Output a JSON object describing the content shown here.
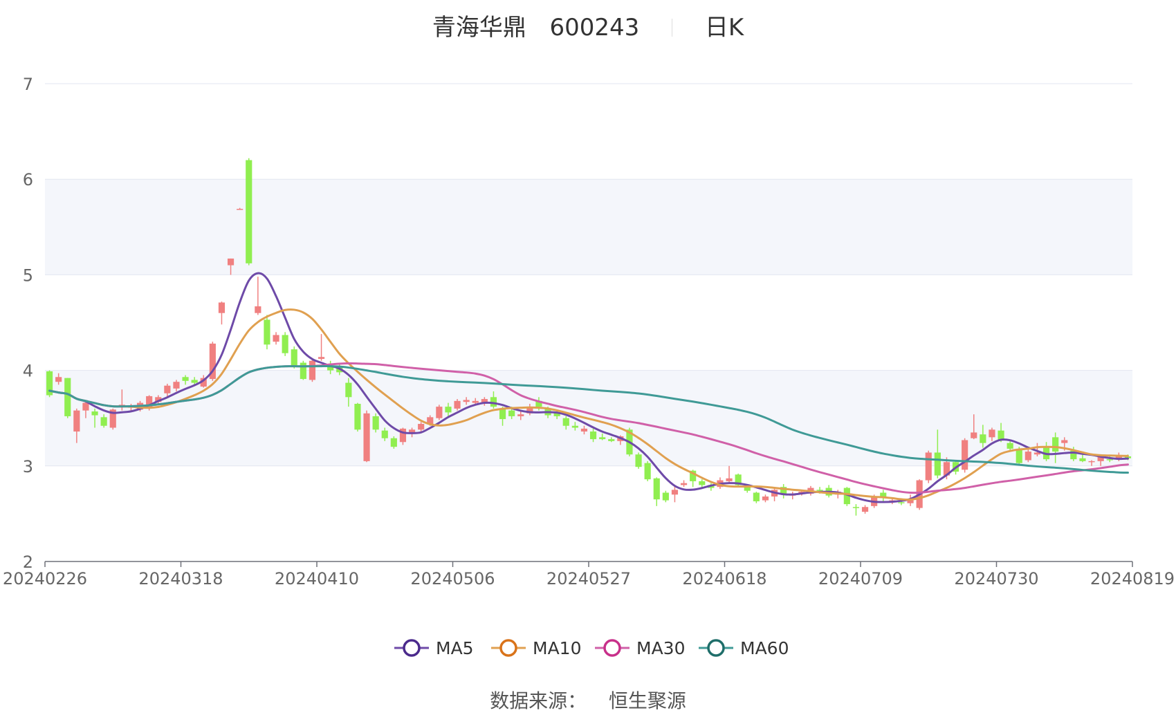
{
  "header": {
    "stock_name": "青海华鼎",
    "stock_code": "600243",
    "period": "日K"
  },
  "footer": {
    "source_label": "数据来源：",
    "source_name": "恒生聚源"
  },
  "colors": {
    "up": "#f08080",
    "down": "#90ee50",
    "ma5": "#6e4aa8",
    "ma10": "#e0a050",
    "ma30": "#d060a8",
    "ma60": "#3f9a96",
    "band": "#f4f6fb",
    "grid": "#e2e6f0"
  },
  "chart_data": {
    "type": "candlestick",
    "ylim": [
      2,
      7
    ],
    "yticks": [
      "2",
      "3",
      "4",
      "5",
      "6",
      "7"
    ],
    "xticks": [
      "20240226",
      "20240318",
      "20240410",
      "20240506",
      "20240527",
      "20240618",
      "20240709",
      "20240730",
      "20240819"
    ],
    "legend": [
      {
        "name": "MA5",
        "key": "ma5",
        "color": "#6e4aa8",
        "marker": "#4b2a8c"
      },
      {
        "name": "MA10",
        "key": "ma10",
        "color": "#e0a050",
        "marker": "#d9731a"
      },
      {
        "name": "MA30",
        "key": "ma30",
        "color": "#d060a8",
        "marker": "#c8308a"
      },
      {
        "name": "MA60",
        "key": "ma60",
        "color": "#3f9a96",
        "marker": "#1f6e6a"
      }
    ],
    "candles": [
      [
        3.99,
        3.74,
        4.0,
        3.72
      ],
      [
        3.88,
        3.93,
        3.97,
        3.85
      ],
      [
        3.92,
        3.52,
        3.92,
        3.5
      ],
      [
        3.36,
        3.58,
        3.6,
        3.24
      ],
      [
        3.58,
        3.66,
        3.68,
        3.5
      ],
      [
        3.57,
        3.53,
        3.6,
        3.4
      ],
      [
        3.51,
        3.42,
        3.54,
        3.4
      ],
      [
        3.4,
        3.59,
        3.6,
        3.38
      ],
      [
        3.63,
        3.64,
        3.8,
        3.58
      ],
      [
        3.62,
        3.62,
        3.65,
        3.58
      ],
      [
        3.59,
        3.66,
        3.68,
        3.57
      ],
      [
        3.6,
        3.73,
        3.74,
        3.58
      ],
      [
        3.67,
        3.72,
        3.74,
        3.65
      ],
      [
        3.76,
        3.84,
        3.86,
        3.72
      ],
      [
        3.81,
        3.88,
        3.9,
        3.78
      ],
      [
        3.93,
        3.89,
        3.95,
        3.85
      ],
      [
        3.9,
        3.87,
        3.93,
        3.85
      ],
      [
        3.83,
        3.92,
        3.95,
        3.82
      ],
      [
        3.91,
        4.28,
        4.3,
        3.89
      ],
      [
        4.6,
        4.71,
        4.72,
        4.48
      ],
      [
        5.1,
        5.17,
        5.17,
        5.0
      ],
      [
        5.69,
        5.69,
        5.7,
        5.68
      ],
      [
        6.2,
        5.12,
        6.22,
        5.1
      ],
      [
        4.6,
        4.67,
        4.98,
        4.58
      ],
      [
        4.53,
        4.27,
        4.58,
        4.22
      ],
      [
        4.3,
        4.37,
        4.4,
        4.27
      ],
      [
        4.37,
        4.18,
        4.4,
        4.15
      ],
      [
        4.22,
        4.05,
        4.25,
        4.02
      ],
      [
        4.08,
        3.91,
        4.1,
        3.9
      ],
      [
        3.9,
        4.1,
        4.12,
        3.88
      ],
      [
        4.12,
        4.14,
        4.38,
        4.1
      ],
      [
        4.05,
        4.0,
        4.1,
        3.96
      ],
      [
        4.03,
        3.98,
        4.08,
        3.95
      ],
      [
        3.87,
        3.72,
        3.92,
        3.62
      ],
      [
        3.65,
        3.38,
        3.66,
        3.36
      ],
      [
        3.05,
        3.55,
        3.58,
        3.04
      ],
      [
        3.52,
        3.38,
        3.55,
        3.35
      ],
      [
        3.37,
        3.29,
        3.4,
        3.26
      ],
      [
        3.29,
        3.2,
        3.31,
        3.18
      ],
      [
        3.25,
        3.39,
        3.4,
        3.22
      ],
      [
        3.34,
        3.38,
        3.4,
        3.3
      ],
      [
        3.38,
        3.44,
        3.46,
        3.36
      ],
      [
        3.44,
        3.51,
        3.53,
        3.42
      ],
      [
        3.5,
        3.62,
        3.64,
        3.48
      ],
      [
        3.62,
        3.56,
        3.66,
        3.52
      ],
      [
        3.6,
        3.68,
        3.7,
        3.58
      ],
      [
        3.67,
        3.69,
        3.72,
        3.64
      ],
      [
        3.66,
        3.68,
        3.71,
        3.64
      ],
      [
        3.65,
        3.7,
        3.72,
        3.63
      ],
      [
        3.72,
        3.62,
        3.78,
        3.6
      ],
      [
        3.6,
        3.49,
        3.62,
        3.42
      ],
      [
        3.58,
        3.52,
        3.62,
        3.49
      ],
      [
        3.52,
        3.54,
        3.57,
        3.48
      ],
      [
        3.55,
        3.62,
        3.65,
        3.53
      ],
      [
        3.68,
        3.62,
        3.72,
        3.58
      ],
      [
        3.6,
        3.53,
        3.62,
        3.5
      ],
      [
        3.56,
        3.52,
        3.58,
        3.49
      ],
      [
        3.5,
        3.42,
        3.52,
        3.38
      ],
      [
        3.42,
        3.4,
        3.46,
        3.37
      ],
      [
        3.36,
        3.39,
        3.42,
        3.33
      ],
      [
        3.36,
        3.28,
        3.39,
        3.25
      ],
      [
        3.3,
        3.28,
        3.34,
        3.27
      ],
      [
        3.28,
        3.26,
        3.3,
        3.25
      ],
      [
        3.26,
        3.31,
        3.32,
        3.22
      ],
      [
        3.38,
        3.12,
        3.4,
        3.1
      ],
      [
        3.12,
        2.99,
        3.14,
        2.97
      ],
      [
        3.03,
        2.86,
        3.05,
        2.84
      ],
      [
        2.87,
        2.65,
        2.88,
        2.58
      ],
      [
        2.72,
        2.64,
        2.74,
        2.62
      ],
      [
        2.7,
        2.75,
        2.8,
        2.62
      ],
      [
        2.8,
        2.82,
        2.85,
        2.78
      ],
      [
        2.95,
        2.84,
        2.96,
        2.78
      ],
      [
        2.84,
        2.8,
        2.86,
        2.76
      ],
      [
        2.8,
        2.77,
        2.82,
        2.74
      ],
      [
        2.78,
        2.85,
        2.88,
        2.76
      ],
      [
        2.84,
        2.87,
        3.0,
        2.82
      ],
      [
        2.91,
        2.8,
        2.92,
        2.79
      ],
      [
        2.78,
        2.74,
        2.81,
        2.72
      ],
      [
        2.72,
        2.63,
        2.73,
        2.61
      ],
      [
        2.64,
        2.68,
        2.7,
        2.62
      ],
      [
        2.68,
        2.75,
        2.77,
        2.63
      ],
      [
        2.78,
        2.7,
        2.81,
        2.66
      ],
      [
        2.7,
        2.7,
        2.73,
        2.65
      ],
      [
        2.71,
        2.73,
        2.75,
        2.69
      ],
      [
        2.71,
        2.77,
        2.79,
        2.69
      ],
      [
        2.75,
        2.74,
        2.78,
        2.71
      ],
      [
        2.77,
        2.69,
        2.8,
        2.67
      ],
      [
        2.7,
        2.73,
        2.75,
        2.66
      ],
      [
        2.77,
        2.6,
        2.78,
        2.58
      ],
      [
        2.57,
        2.56,
        2.6,
        2.48
      ],
      [
        2.52,
        2.57,
        2.59,
        2.5
      ],
      [
        2.58,
        2.68,
        2.7,
        2.56
      ],
      [
        2.72,
        2.67,
        2.75,
        2.62
      ],
      [
        2.63,
        2.64,
        2.66,
        2.6
      ],
      [
        2.62,
        2.61,
        2.64,
        2.59
      ],
      [
        2.61,
        2.64,
        2.7,
        2.58
      ],
      [
        2.56,
        2.85,
        2.86,
        2.54
      ],
      [
        2.85,
        3.14,
        3.16,
        2.82
      ],
      [
        3.14,
        2.9,
        3.38,
        2.87
      ],
      [
        2.9,
        3.04,
        3.09,
        2.86
      ],
      [
        3.04,
        2.94,
        3.06,
        2.91
      ],
      [
        2.96,
        3.27,
        3.29,
        2.93
      ],
      [
        3.29,
        3.35,
        3.54,
        3.28
      ],
      [
        3.33,
        3.24,
        3.43,
        3.19
      ],
      [
        3.3,
        3.38,
        3.4,
        3.26
      ],
      [
        3.37,
        3.27,
        3.45,
        3.25
      ],
      [
        3.24,
        3.18,
        3.27,
        3.15
      ],
      [
        3.18,
        3.03,
        3.2,
        3.01
      ],
      [
        3.06,
        3.15,
        3.17,
        3.04
      ],
      [
        3.12,
        3.14,
        3.24,
        3.1
      ],
      [
        3.2,
        3.07,
        3.25,
        3.05
      ],
      [
        3.3,
        3.15,
        3.35,
        3.03
      ],
      [
        3.24,
        3.27,
        3.3,
        3.16
      ],
      [
        3.16,
        3.07,
        3.2,
        3.05
      ],
      [
        3.08,
        3.05,
        3.12,
        3.04
      ],
      [
        3.04,
        3.05,
        3.06,
        3.0
      ],
      [
        3.05,
        3.1,
        3.12,
        3.0
      ],
      [
        3.07,
        3.06,
        3.1,
        3.04
      ],
      [
        3.08,
        3.11,
        3.14,
        3.05
      ],
      [
        3.1,
        3.08,
        3.12,
        3.06
      ]
    ]
  }
}
